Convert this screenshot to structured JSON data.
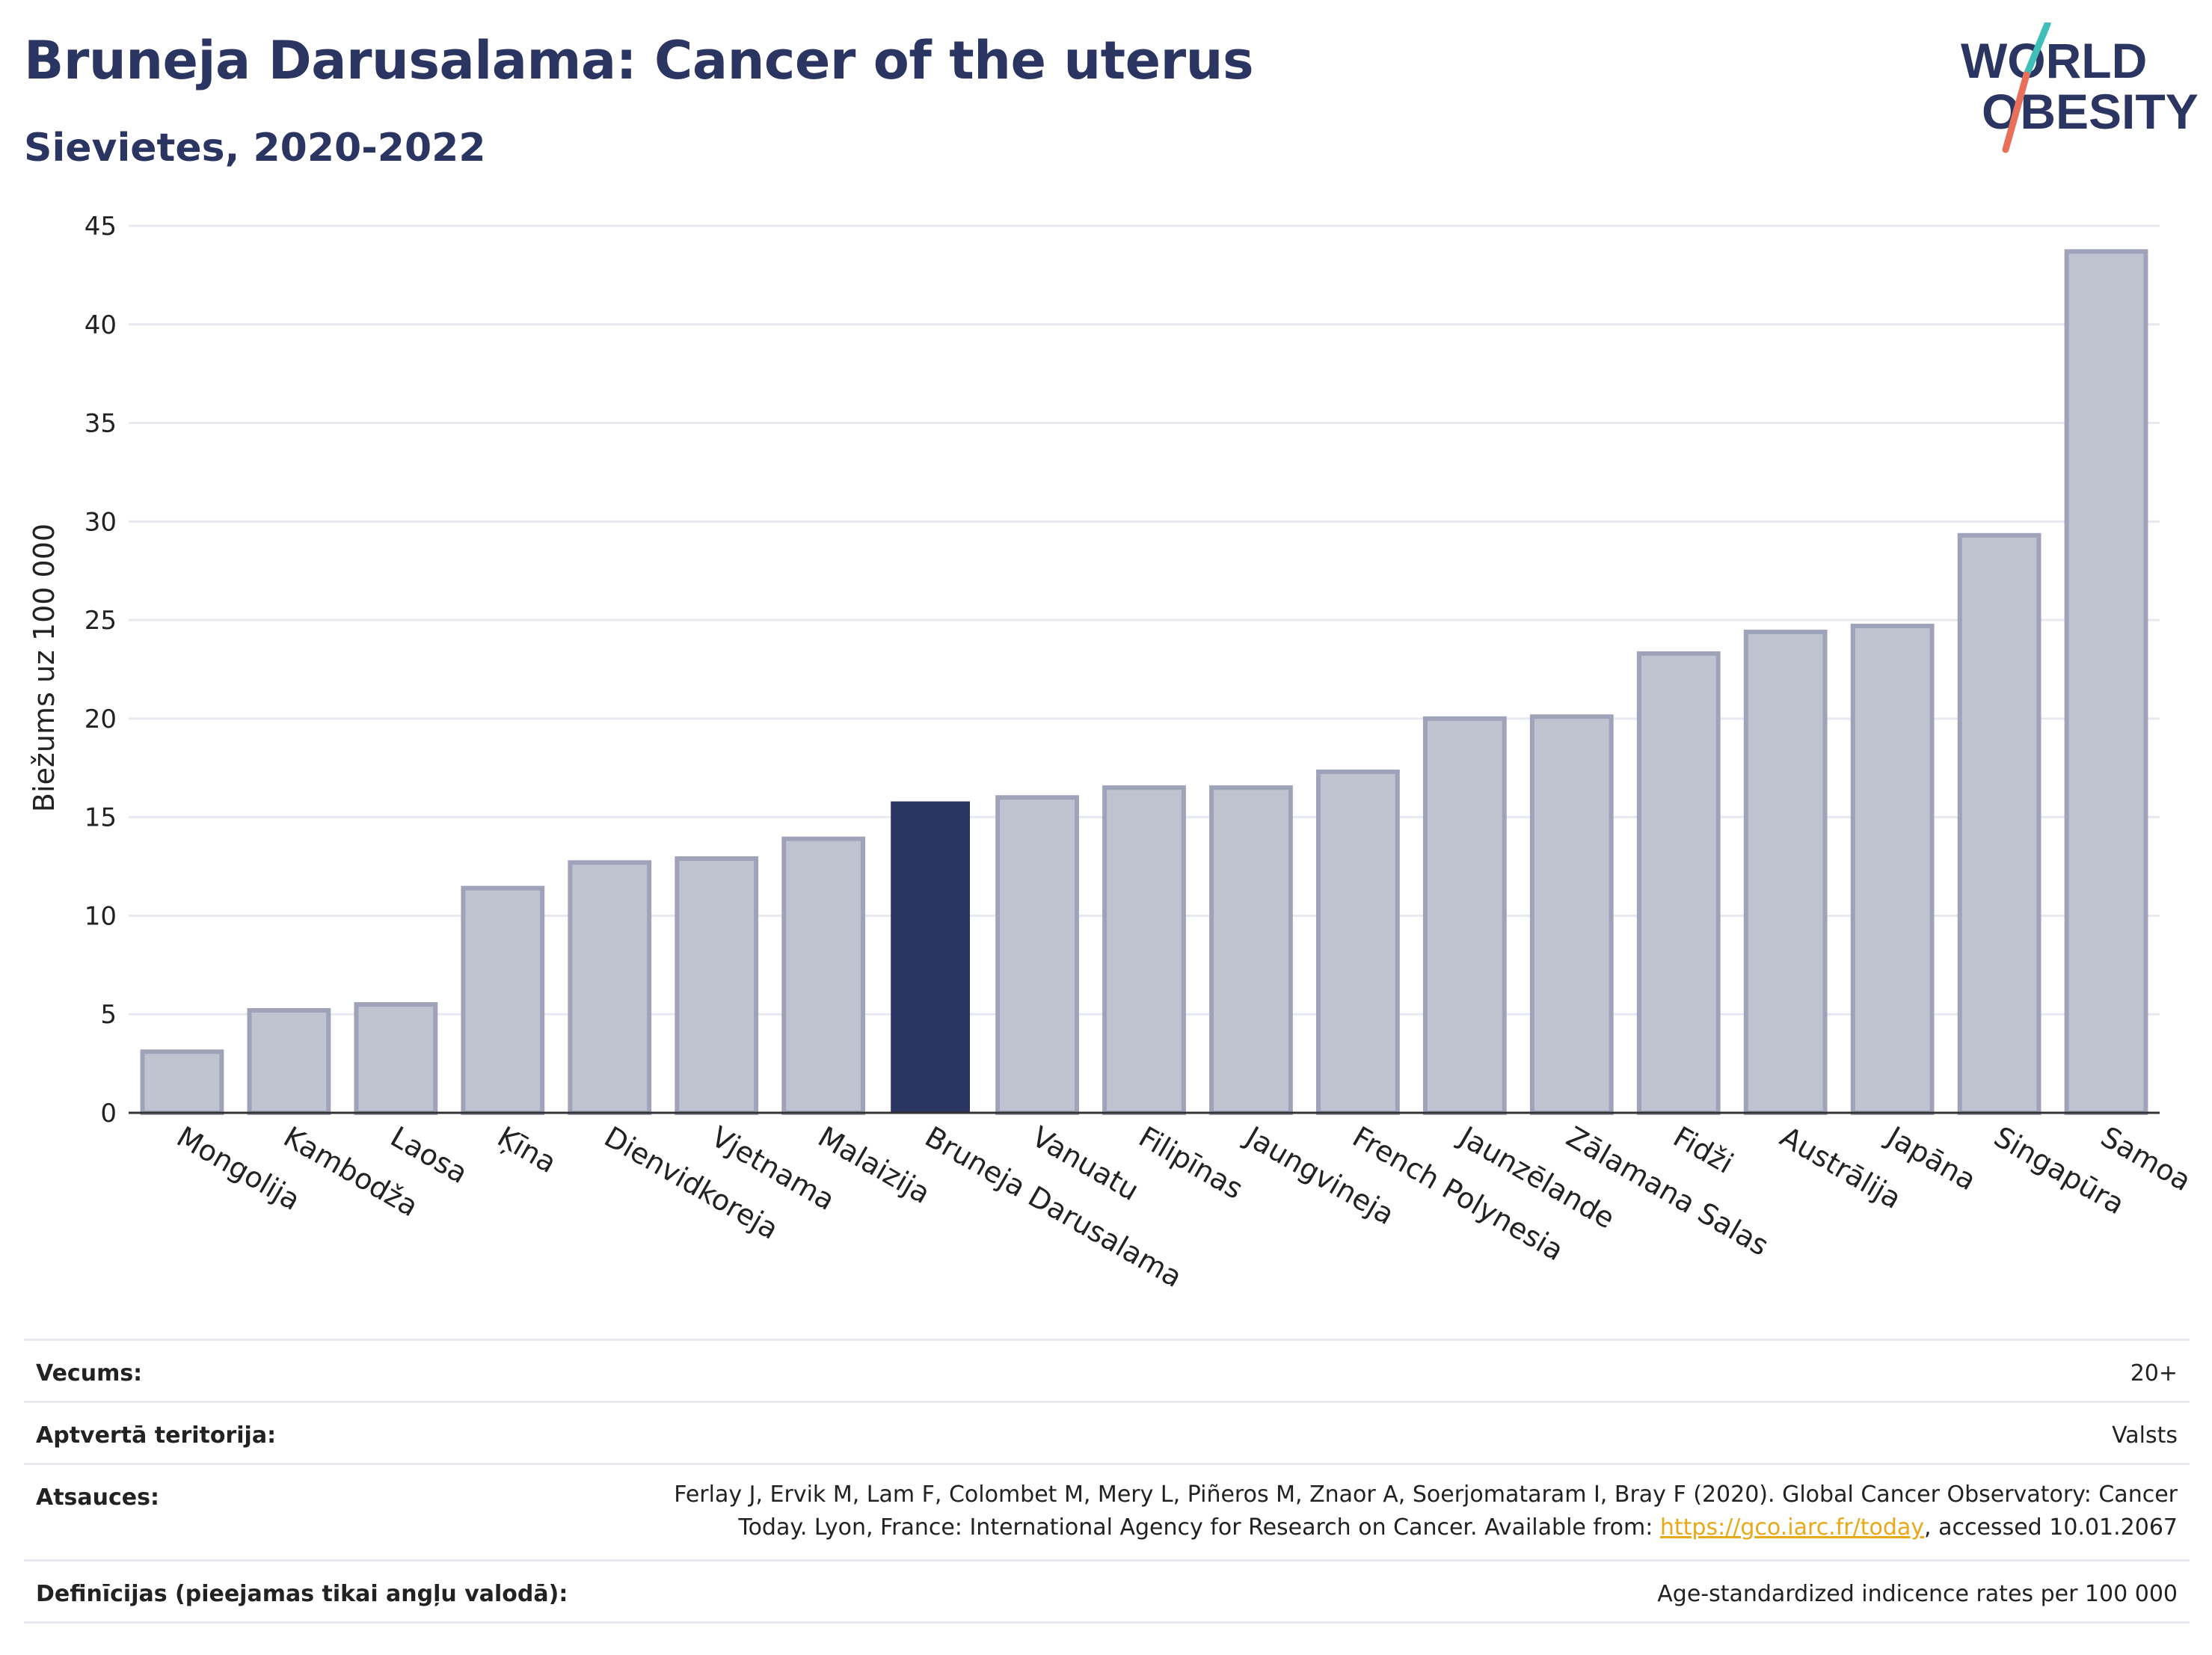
{
  "header": {
    "title": "Bruneja Darusalama: Cancer of the uterus",
    "subtitle": "Sievietes, 2020-2022",
    "logo_line1": "WORLD",
    "logo_line2": "OBESITY"
  },
  "colors": {
    "title": "#2b3561",
    "highlight_bar": "#2b3561",
    "bar_fill": "#bfc3d0",
    "bar_stroke": "#9ea3b9",
    "logo_teal": "#3fbfb8",
    "logo_coral": "#e8705a",
    "link": "#e8a81a"
  },
  "chart_data": {
    "type": "bar",
    "ylabel": "Biežums uz 100 000",
    "xlabel": "",
    "ylim": [
      0,
      45
    ],
    "yticks": [
      0,
      5,
      10,
      15,
      20,
      25,
      30,
      35,
      40,
      45
    ],
    "grid": true,
    "highlight": "Bruneja Darusalama",
    "categories": [
      "Mongolija",
      "Kambodža",
      "Laosa",
      "Ķīna",
      "Dienvidkoreja",
      "Vjetnama",
      "Malaizija",
      "Bruneja Darusalama",
      "Vanuatu",
      "Filipīnas",
      "Jaungvineja",
      "French Polynesia",
      "Jaunzēlande",
      "Zālamana Salas",
      "Fidži",
      "Austrālija",
      "Japāna",
      "Singapūra",
      "Samoa"
    ],
    "values": [
      3.1,
      5.2,
      5.5,
      11.4,
      12.7,
      12.9,
      13.9,
      15.8,
      16.0,
      16.5,
      16.5,
      17.3,
      20.0,
      20.1,
      23.3,
      24.4,
      24.7,
      29.3,
      43.7
    ]
  },
  "info": {
    "age_label": "Vecums:",
    "age_value": "20+",
    "territory_label": "Aptvertā teritorija:",
    "territory_value": "Valsts",
    "refs_label": "Atsauces:",
    "refs_text_1": "Ferlay J, Ervik M, Lam F, Colombet M, Mery L, Piñeros M, Znaor A, Soerjomataram I, Bray F (2020). Global Cancer Observatory: Cancer Today. Lyon, France: International Agency for Research on Cancer. Available from: ",
    "refs_link": "https://gco.iarc.fr/today",
    "refs_text_2": ", accessed 10.01.2067",
    "def_label": "Definīcijas (pieejamas tikai angļu valodā):",
    "def_value": "Age-standardized indicence rates per 100 000"
  }
}
